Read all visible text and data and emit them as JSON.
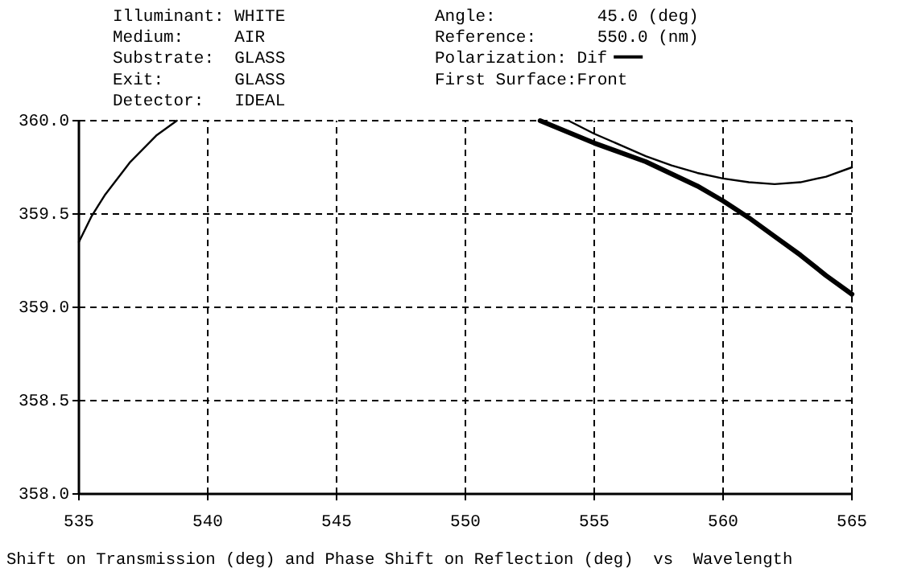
{
  "chart_data": {
    "type": "line",
    "xlabel": "Shift on Transmission (deg) and Phase Shift on Reflection (deg)  vs  Wavelength",
    "annotations": [
      "Illuminant: WHITE",
      "Medium:     AIR",
      "Substrate:  GLASS",
      "Exit:       GLASS",
      "Detector:   IDEAL",
      "Angle:          45.0 (deg)",
      "Reference:      550.0 (nm)",
      "First Surface:Front"
    ],
    "legend_title": "Polarization: ",
    "legend": "top",
    "xlim": [
      535,
      565
    ],
    "xticks": [
      535,
      540,
      545,
      550,
      555,
      560,
      565
    ],
    "ylim": [
      358,
      360
    ],
    "yticks": [
      {
        "value": 358,
        "label": "358.0"
      },
      {
        "value": 358.5,
        "label": "358.5"
      },
      {
        "value": 359,
        "label": "359.0"
      },
      {
        "value": 359.5,
        "label": "359.5"
      },
      {
        "value": 360,
        "label": "360.0"
      }
    ],
    "grid": true,
    "line_style": "solid",
    "marker": "none",
    "series": [
      {
        "color": "#000000",
        "x": [
          535,
          535.5,
          536,
          537,
          538,
          538.8
        ],
        "values": [
          359.35,
          359.49,
          359.6,
          359.78,
          359.92,
          360
        ]
      },
      {
        "name": "Dif",
        "color": "#000000",
        "x": [
          552.9,
          555,
          557,
          559,
          560,
          561,
          562,
          563,
          564,
          565
        ],
        "values": [
          360,
          359.88,
          359.78,
          359.65,
          359.57,
          359.48,
          359.38,
          359.28,
          359.17,
          359.07
        ]
      },
      {
        "color": "#000000",
        "x": [
          554,
          555,
          556,
          557,
          558,
          559,
          560,
          561,
          562,
          563,
          564,
          565
        ],
        "values": [
          360,
          359.93,
          359.87,
          359.81,
          359.76,
          359.72,
          359.69,
          359.67,
          359.66,
          359.67,
          359.7,
          359.75
        ]
      }
    ]
  }
}
